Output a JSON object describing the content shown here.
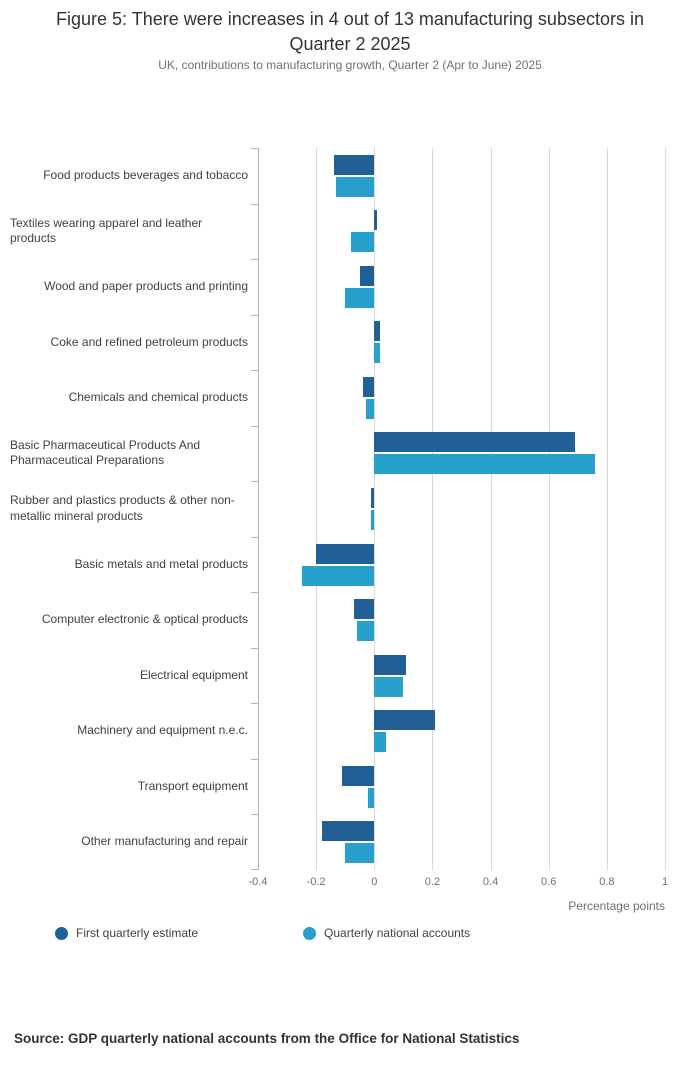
{
  "title": "Figure 5: There were increases in 4 out of 13 manufacturing subsectors in Quarter 2 2025",
  "subtitle": "UK, contributions to manufacturing growth, Quarter 2 (Apr to June) 2025",
  "source": "Source: GDP quarterly national accounts from the Office for National Statistics",
  "colors": {
    "first_estimate": "#206095",
    "national_accounts": "#27A0CC",
    "gridline": "#d8d8d8",
    "axis_text": "#707071",
    "label_text": "#414042",
    "title_text": "#333333"
  },
  "chart_data": {
    "type": "bar",
    "orientation": "horizontal",
    "title": "Figure 5: There were increases in 4 out of 13 manufacturing subsectors in Quarter 2 2025",
    "subtitle": "UK, contributions to manufacturing growth, Quarter 2 (Apr to June) 2025",
    "categories": [
      "Food products beverages and tobacco",
      "Textiles wearing apparel and leather products",
      "Wood and paper products and printing",
      "Coke and refined petroleum products",
      "Chemicals and chemical products",
      "Basic Pharmaceutical Products And Pharmaceutical Preparations",
      "Rubber and plastics products & other non-metallic mineral products",
      "Basic metals and metal products",
      "Computer electronic & optical products",
      "Electrical equipment",
      "Machinery and equipment n.e.c.",
      "Transport equipment",
      "Other manufacturing and repair"
    ],
    "series": [
      {
        "name": "First quarterly estimate",
        "color": "#206095",
        "values": [
          -0.14,
          0.01,
          -0.05,
          0.02,
          -0.04,
          0.69,
          -0.01,
          -0.2,
          -0.07,
          0.11,
          0.21,
          -0.11,
          -0.18
        ]
      },
      {
        "name": "Quarterly national accounts",
        "color": "#27A0CC",
        "values": [
          -0.13,
          -0.08,
          -0.1,
          0.02,
          -0.03,
          0.76,
          -0.01,
          -0.25,
          -0.06,
          0.1,
          0.04,
          -0.02,
          -0.1
        ]
      }
    ],
    "xlabel": "Percentage points",
    "xlim": [
      -0.4,
      1
    ],
    "xticks": [
      -0.4,
      -0.2,
      0,
      0.2,
      0.4,
      0.6,
      0.8,
      1
    ],
    "grid": true,
    "legend_position": "bottom"
  }
}
